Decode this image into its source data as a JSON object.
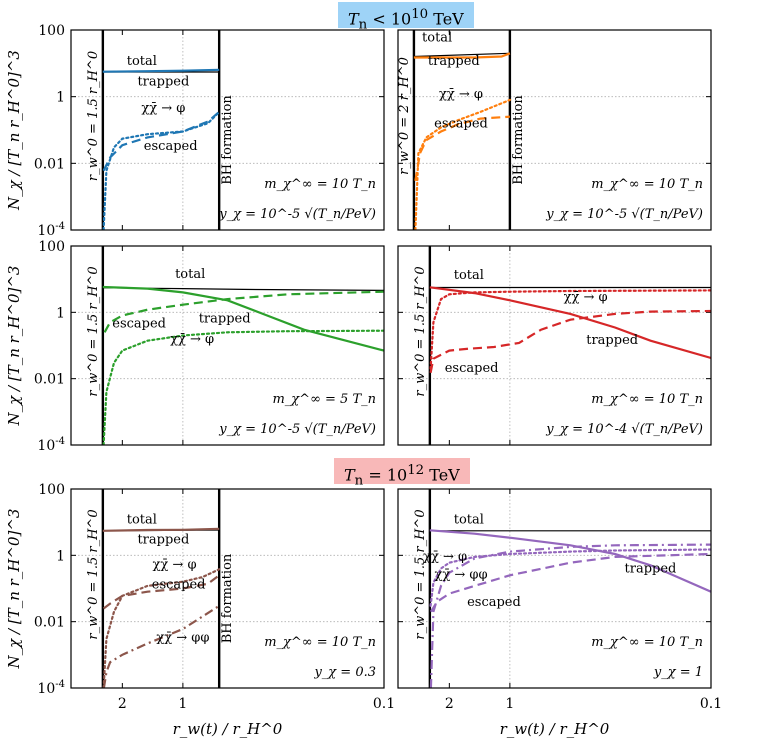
{
  "banners": {
    "top": {
      "prefix": "T",
      "sub": "n",
      "rel": " < ",
      "base": "10",
      "exp": "10",
      "unit": " TeV"
    },
    "bottom": {
      "prefix": "T",
      "sub": "n",
      "rel": " = ",
      "base": "10",
      "exp": "12",
      "unit": " TeV"
    }
  },
  "axes": {
    "xlabel": "r_w(t) / r_H^0",
    "ylabel": "N_χ / [T_n r_H^0]^3",
    "x_log": true,
    "x_reversed": true,
    "xlim": [
      3.6,
      0.1
    ],
    "ylim": [
      0.0001,
      100
    ],
    "yticks": [
      "100",
      "1",
      "0.01",
      "10^-4"
    ],
    "xticks": [
      "2",
      "1",
      "0.1"
    ],
    "grid": true
  },
  "chart_data": [
    {
      "type": "line",
      "panel": "row1-left",
      "color": "#1f77b4",
      "wall_label": "r_w^0 = 1.5 r_H^0",
      "x_start": 2.5,
      "bh_label": "BH formation",
      "bh_x": 0.66,
      "params": {
        "mass": "m_χ^∞ = 10 T_n",
        "coupling": "y_χ = 10^-5 √(T_n/PeV)"
      },
      "labels": [
        {
          "text": "total",
          "x": 1.6,
          "y": 9
        },
        {
          "text": "trapped",
          "x": 1.25,
          "y": 2.2
        },
        {
          "text": "χχ̄ → φ",
          "x": 1.25,
          "y": 0.35
        },
        {
          "text": "escaped",
          "x": 1.15,
          "y": 0.025
        }
      ],
      "series": [
        {
          "name": "total",
          "style": "solid",
          "width": 1.2,
          "black": true,
          "x": [
            2.5,
            0.66
          ],
          "y": [
            5.5,
            5.5
          ]
        },
        {
          "name": "trapped",
          "style": "solid",
          "width": 2.2,
          "x": [
            2.5,
            1.5,
            1.0,
            0.66
          ],
          "y": [
            5.6,
            5.8,
            6.0,
            6.4
          ]
        },
        {
          "name": "χχ̄ → φ",
          "style": "dotted",
          "width": 2.2,
          "x": [
            2.48,
            2.4,
            2.2,
            2.0,
            1.5,
            1.0,
            0.75,
            0.66
          ],
          "y": [
            0.0001,
            0.006,
            0.03,
            0.055,
            0.075,
            0.09,
            0.16,
            0.35
          ]
        },
        {
          "name": "escaped",
          "style": "dashed",
          "width": 2.2,
          "x": [
            2.48,
            2.3,
            2.0,
            1.5,
            1.0,
            0.75,
            0.66
          ],
          "y": [
            0.006,
            0.015,
            0.035,
            0.06,
            0.09,
            0.18,
            0.35
          ]
        }
      ]
    },
    {
      "type": "line",
      "panel": "row1-right",
      "color": "#ff7f0e",
      "wall_label": "r_w^0 = 2 r_H^0",
      "x_start": 3.0,
      "bh_label": "BH formation",
      "bh_x": 1.0,
      "params": {
        "mass": "m_χ^∞ = 10 T_n",
        "coupling": "y_χ = 10^-5 √(T_n/PeV)"
      },
      "labels": [
        {
          "text": "total",
          "x": 2.3,
          "y": 45
        },
        {
          "text": "trapped",
          "x": 1.9,
          "y": 9
        },
        {
          "text": "χχ̄ → φ",
          "x": 1.75,
          "y": 0.9
        },
        {
          "text": "escaped",
          "x": 1.75,
          "y": 0.12
        }
      ],
      "series": [
        {
          "name": "total",
          "style": "solid",
          "width": 1.2,
          "black": true,
          "x": [
            3.0,
            1.0
          ],
          "y": [
            16,
            20
          ]
        },
        {
          "name": "trapped",
          "style": "solid",
          "width": 2.2,
          "x": [
            3.0,
            1.5,
            1.1,
            1.0
          ],
          "y": [
            15,
            15,
            16,
            20
          ]
        },
        {
          "name": "χχ̄ → φ",
          "style": "dotted",
          "width": 2.2,
          "x": [
            2.95,
            2.85,
            2.6,
            2.2,
            1.8,
            1.4,
            1.0
          ],
          "y": [
            0.0001,
            0.02,
            0.06,
            0.12,
            0.2,
            0.35,
            0.8
          ]
        },
        {
          "name": "escaped",
          "style": "dashed",
          "width": 2.2,
          "x": [
            2.95,
            2.8,
            2.6,
            2.2,
            1.8,
            1.4,
            1.0
          ],
          "y": [
            0.003,
            0.02,
            0.05,
            0.09,
            0.15,
            0.22,
            0.25
          ]
        }
      ]
    },
    {
      "type": "line",
      "panel": "row2-left",
      "color": "#2ca02c",
      "wall_label": "r_w^0 = 1.5 r_H^0",
      "x_start": 2.5,
      "bh_label": "",
      "bh_x": null,
      "params": {
        "mass": "m_χ^∞ = 5 T_n",
        "coupling": "y_χ = 10^-5 √(T_n/PeV)"
      },
      "labels": [
        {
          "text": "total",
          "x": 0.92,
          "y": 11
        },
        {
          "text": "escaped",
          "x": 1.65,
          "y": 0.35
        },
        {
          "text": "trapped",
          "x": 0.62,
          "y": 0.5
        },
        {
          "text": "χχ̄ → φ",
          "x": 0.9,
          "y": 0.12
        }
      ],
      "series": [
        {
          "name": "total",
          "style": "solid",
          "width": 1.2,
          "black": true,
          "x": [
            2.5,
            1.0,
            0.5,
            0.1
          ],
          "y": [
            5.5,
            5.2,
            4.9,
            4.6
          ]
        },
        {
          "name": "trapped",
          "style": "solid",
          "width": 2.2,
          "x": [
            2.5,
            1.5,
            1.0,
            0.6,
            0.4,
            0.25,
            0.1
          ],
          "y": [
            5.8,
            5.2,
            4.0,
            2.3,
            0.9,
            0.3,
            0.07
          ]
        },
        {
          "name": "escaped",
          "style": "dashed",
          "width": 2.2,
          "x": [
            2.45,
            2.3,
            2.0,
            1.5,
            1.0,
            0.6,
            0.3,
            0.1
          ],
          "y": [
            0.25,
            0.5,
            0.8,
            1.2,
            1.7,
            2.5,
            3.5,
            4.2
          ]
        },
        {
          "name": "χχ̄ → φ",
          "style": "dotted",
          "width": 2.2,
          "x": [
            2.48,
            2.4,
            2.2,
            2.0,
            1.5,
            1.0,
            0.6,
            0.3,
            0.1
          ],
          "y": [
            0.0001,
            0.004,
            0.03,
            0.07,
            0.14,
            0.2,
            0.25,
            0.27,
            0.28
          ]
        }
      ]
    },
    {
      "type": "line",
      "panel": "row2-right",
      "color": "#d62728",
      "wall_label": "r_w^0 = 1.5 r_H^0",
      "x_start": 2.5,
      "bh_label": "",
      "bh_x": null,
      "params": {
        "mass": "m_χ^∞ = 10 T_n",
        "coupling": "y_χ = 10^-4 √(T_n/PeV)"
      },
      "labels": [
        {
          "text": "total",
          "x": 1.6,
          "y": 10
        },
        {
          "text": "χχ̄ → φ",
          "x": 0.42,
          "y": 2.2
        },
        {
          "text": "trapped",
          "x": 0.31,
          "y": 0.11
        },
        {
          "text": "escaped",
          "x": 1.55,
          "y": 0.016
        }
      ],
      "series": [
        {
          "name": "total",
          "style": "solid",
          "width": 1.2,
          "black": true,
          "x": [
            2.5,
            1.0,
            0.5,
            0.1
          ],
          "y": [
            5.6,
            5.6,
            5.6,
            5.6
          ]
        },
        {
          "name": "trapped",
          "style": "solid",
          "width": 2.2,
          "x": [
            2.5,
            1.5,
            1.0,
            0.5,
            0.3,
            0.2,
            0.1
          ],
          "y": [
            5.7,
            3.8,
            2.3,
            0.9,
            0.35,
            0.14,
            0.042
          ]
        },
        {
          "name": "χχ̄ → φ",
          "style": "dotted",
          "width": 2.2,
          "x": [
            2.48,
            2.4,
            2.2,
            2.0,
            1.5,
            1.0,
            0.5,
            0.1
          ],
          "y": [
            0.02,
            0.5,
            2.5,
            3.5,
            4.0,
            4.2,
            4.4,
            4.6
          ]
        },
        {
          "name": "escaped",
          "style": "dashed",
          "width": 2.2,
          "x": [
            2.48,
            2.4,
            2.0,
            1.6,
            1.2,
            0.9,
            0.7,
            0.5,
            0.3,
            0.2,
            0.1
          ],
          "y": [
            0.015,
            0.04,
            0.07,
            0.08,
            0.09,
            0.12,
            0.3,
            0.6,
            0.9,
            1.05,
            1.1
          ]
        }
      ]
    },
    {
      "type": "line",
      "panel": "row3-left",
      "color": "#8c564b",
      "wall_label": "r_w^0 = 1.5 r_H^0",
      "x_start": 2.5,
      "bh_label": "BH formation",
      "bh_x": 0.66,
      "params": {
        "mass": "m_χ^∞ = 10 T_n",
        "coupling": "y_χ = 0.3"
      },
      "labels": [
        {
          "text": "total",
          "x": 1.6,
          "y": 9
        },
        {
          "text": "trapped",
          "x": 1.25,
          "y": 2.3
        },
        {
          "text": "χχ̄ → φ",
          "x": 1.1,
          "y": 0.4
        },
        {
          "text": "escaped",
          "x": 1.05,
          "y": 0.1
        },
        {
          "text": "χχ̄ → φφ",
          "x": 1.0,
          "y": 0.0025
        }
      ],
      "series": [
        {
          "name": "total",
          "style": "solid",
          "width": 1.2,
          "black": true,
          "x": [
            2.5,
            0.66
          ],
          "y": [
            5.5,
            5.8
          ]
        },
        {
          "name": "trapped",
          "style": "solid",
          "width": 2.2,
          "x": [
            2.5,
            1.5,
            1.0,
            0.66
          ],
          "y": [
            5.5,
            5.8,
            5.9,
            6.3
          ]
        },
        {
          "name": "χχ̄ → φ",
          "style": "dotted",
          "width": 2.2,
          "x": [
            2.48,
            2.4,
            2.2,
            2.0,
            1.5,
            1.0,
            0.8,
            0.66
          ],
          "y": [
            0.0001,
            0.003,
            0.02,
            0.06,
            0.12,
            0.16,
            0.22,
            0.38
          ]
        },
        {
          "name": "escaped",
          "style": "dashed",
          "width": 2.2,
          "x": [
            2.48,
            2.3,
            2.0,
            1.5,
            1.0,
            0.75,
            0.66
          ],
          "y": [
            0.025,
            0.035,
            0.06,
            0.08,
            0.1,
            0.14,
            0.25
          ]
        },
        {
          "name": "χχ̄ → φφ",
          "style": "dashdot",
          "width": 2.2,
          "x": [
            2.47,
            2.4,
            2.3,
            2.0,
            1.5,
            1.0,
            0.66
          ],
          "y": [
            0.0001,
            0.0003,
            0.0006,
            0.001,
            0.0022,
            0.006,
            0.03
          ]
        }
      ]
    },
    {
      "type": "line",
      "panel": "row3-right",
      "color": "#9467bd",
      "wall_label": "r_w^0 = 1.5 r_H^0",
      "x_start": 2.5,
      "bh_label": "",
      "bh_x": null,
      "params": {
        "mass": "m_χ^∞ = 10 T_n",
        "coupling": "y_χ = 1"
      },
      "labels": [
        {
          "text": "total",
          "x": 1.6,
          "y": 9
        },
        {
          "text": "χχ̄ → φ",
          "x": 2.1,
          "y": 0.7
        },
        {
          "text": "χχ̄ → φφ",
          "x": 1.75,
          "y": 0.2
        },
        {
          "text": "escaped",
          "x": 1.2,
          "y": 0.03
        },
        {
          "text": "trapped",
          "x": 0.2,
          "y": 0.3
        }
      ],
      "series": [
        {
          "name": "total",
          "style": "solid",
          "width": 1.2,
          "black": true,
          "x": [
            2.5,
            1.0,
            0.1
          ],
          "y": [
            5.5,
            5.5,
            5.5
          ]
        },
        {
          "name": "trapped",
          "style": "solid",
          "width": 2.2,
          "x": [
            2.5,
            1.5,
            1.0,
            0.5,
            0.3,
            0.2,
            0.1
          ],
          "y": [
            5.7,
            4.5,
            3.4,
            2.0,
            1.1,
            0.5,
            0.08
          ]
        },
        {
          "name": "χχ̄ → φ",
          "style": "dotted",
          "width": 2.2,
          "x": [
            2.48,
            2.4,
            2.2,
            2.0,
            1.5,
            1.0,
            0.5,
            0.3,
            0.1
          ],
          "y": [
            0.03,
            0.15,
            0.4,
            0.6,
            0.9,
            1.1,
            1.3,
            1.4,
            1.5
          ]
        },
        {
          "name": "χχ̄ → φφ",
          "style": "dashdot",
          "width": 2.2,
          "x": [
            2.47,
            2.4,
            2.2,
            2.0,
            1.5,
            1.0,
            0.5,
            0.3,
            0.1
          ],
          "y": [
            0.0001,
            0.02,
            0.12,
            0.3,
            0.8,
            1.3,
            1.8,
            2.0,
            2.1
          ]
        },
        {
          "name": "escaped",
          "style": "dashed",
          "width": 2.2,
          "x": [
            2.47,
            2.3,
            2.0,
            1.5,
            1.0,
            0.5,
            0.3,
            0.1
          ],
          "y": [
            0.02,
            0.04,
            0.07,
            0.12,
            0.25,
            0.6,
            0.9,
            1.1
          ]
        }
      ]
    }
  ]
}
